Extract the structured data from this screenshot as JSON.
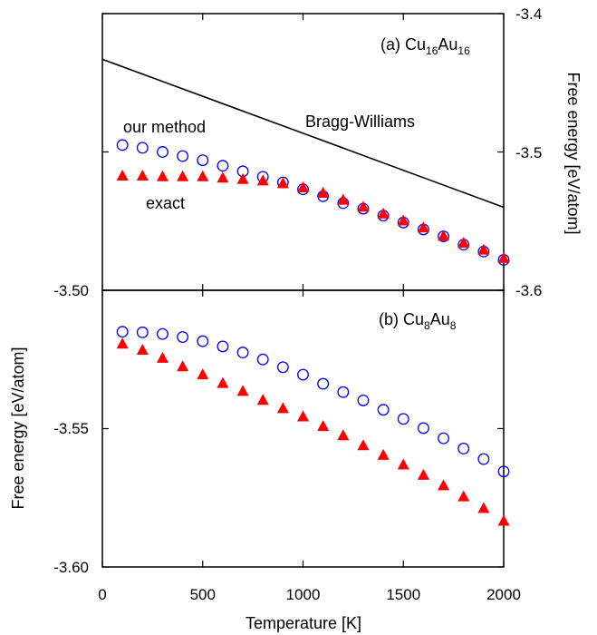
{
  "chart_data": [
    {
      "type": "scatter",
      "panel_label": {
        "prefix": "(a) Cu",
        "sub1": "16",
        "mid": "Au",
        "sub2": "16"
      },
      "xlabel": "Temperature [K]",
      "xlim": [
        0,
        2000
      ],
      "x_ticks": [
        "0",
        "500",
        "1000",
        "1500",
        "2000"
      ],
      "ylabel": "Free energy [eV/atom]",
      "ylim": [
        -3.6,
        -3.4
      ],
      "y_axis_side": "right",
      "y_ticks": [
        "-3.4",
        "-3.5",
        "-3.6"
      ],
      "series": [
        {
          "name": "our method",
          "marker": "open-circle",
          "color": "#0000ff",
          "x": [
            100,
            200,
            300,
            400,
            500,
            600,
            700,
            800,
            900,
            1000,
            1100,
            1200,
            1300,
            1400,
            1500,
            1600,
            1700,
            1800,
            1900,
            2000
          ],
          "y": [
            -3.495,
            -3.497,
            -3.5,
            -3.503,
            -3.506,
            -3.51,
            -3.514,
            -3.518,
            -3.522,
            -3.527,
            -3.532,
            -3.537,
            -3.541,
            -3.546,
            -3.551,
            -3.556,
            -3.561,
            -3.567,
            -3.572,
            -3.578
          ]
        },
        {
          "name": "exact",
          "marker": "filled-triangle",
          "color": "#ff0000",
          "x": [
            100,
            200,
            300,
            400,
            500,
            600,
            700,
            800,
            900,
            1000,
            1100,
            1200,
            1300,
            1400,
            1500,
            1600,
            1700,
            1800,
            1900,
            2000
          ],
          "y": [
            -3.5175,
            -3.5175,
            -3.518,
            -3.518,
            -3.518,
            -3.519,
            -3.52,
            -3.521,
            -3.523,
            -3.526,
            -3.53,
            -3.535,
            -3.54,
            -3.545,
            -3.55,
            -3.555,
            -3.561,
            -3.566,
            -3.571,
            -3.577
          ]
        },
        {
          "name": "Bragg-Williams",
          "marker": "line",
          "color": "#000000",
          "x": [
            0,
            2000
          ],
          "y": [
            -3.433,
            -3.54
          ]
        }
      ]
    },
    {
      "type": "scatter",
      "panel_label": {
        "prefix": "(b) Cu",
        "sub1": "8",
        "mid": "Au",
        "sub2": "8"
      },
      "xlabel": "Temperature [K]",
      "xlim": [
        0,
        2000
      ],
      "x_ticks": [
        "0",
        "500",
        "1000",
        "1500",
        "2000"
      ],
      "ylabel": "Free energy [eV/atom]",
      "ylim": [
        -3.6,
        -3.5
      ],
      "y_axis_side": "left",
      "y_ticks": [
        "-3.50",
        "-3.55",
        "-3.60"
      ],
      "series": [
        {
          "name": "our method",
          "marker": "open-circle",
          "color": "#0000ff",
          "x": [
            100,
            200,
            300,
            400,
            500,
            600,
            700,
            800,
            900,
            1000,
            1100,
            1200,
            1300,
            1400,
            1500,
            1600,
            1700,
            1800,
            1900,
            2000
          ],
          "y": [
            -3.515,
            -3.5152,
            -3.5158,
            -3.5169,
            -3.5184,
            -3.5203,
            -3.5225,
            -3.525,
            -3.5278,
            -3.5305,
            -3.5338,
            -3.5368,
            -3.5398,
            -3.5432,
            -3.5465,
            -3.5498,
            -3.5535,
            -3.5572,
            -3.561,
            -3.5655
          ]
        },
        {
          "name": "exact",
          "marker": "filled-triangle",
          "color": "#ff0000",
          "x": [
            100,
            200,
            300,
            400,
            500,
            600,
            700,
            800,
            900,
            1000,
            1100,
            1200,
            1300,
            1400,
            1500,
            1600,
            1700,
            1800,
            1900,
            2000
          ],
          "y": [
            -3.5195,
            -3.5217,
            -3.5246,
            -3.5277,
            -3.5306,
            -3.5337,
            -3.5366,
            -3.5398,
            -3.5428,
            -3.5458,
            -3.5493,
            -3.5526,
            -3.5562,
            -3.5597,
            -3.5632,
            -3.5669,
            -3.5707,
            -3.5747,
            -3.5789,
            -3.5835
          ]
        }
      ]
    }
  ],
  "annotations": {
    "our_method": "our method",
    "exact": "exact",
    "bragg_williams": "Bragg-Williams"
  },
  "colors": {
    "our_method": "#0000ff",
    "exact": "#ff0000",
    "bragg_williams": "#000000"
  }
}
